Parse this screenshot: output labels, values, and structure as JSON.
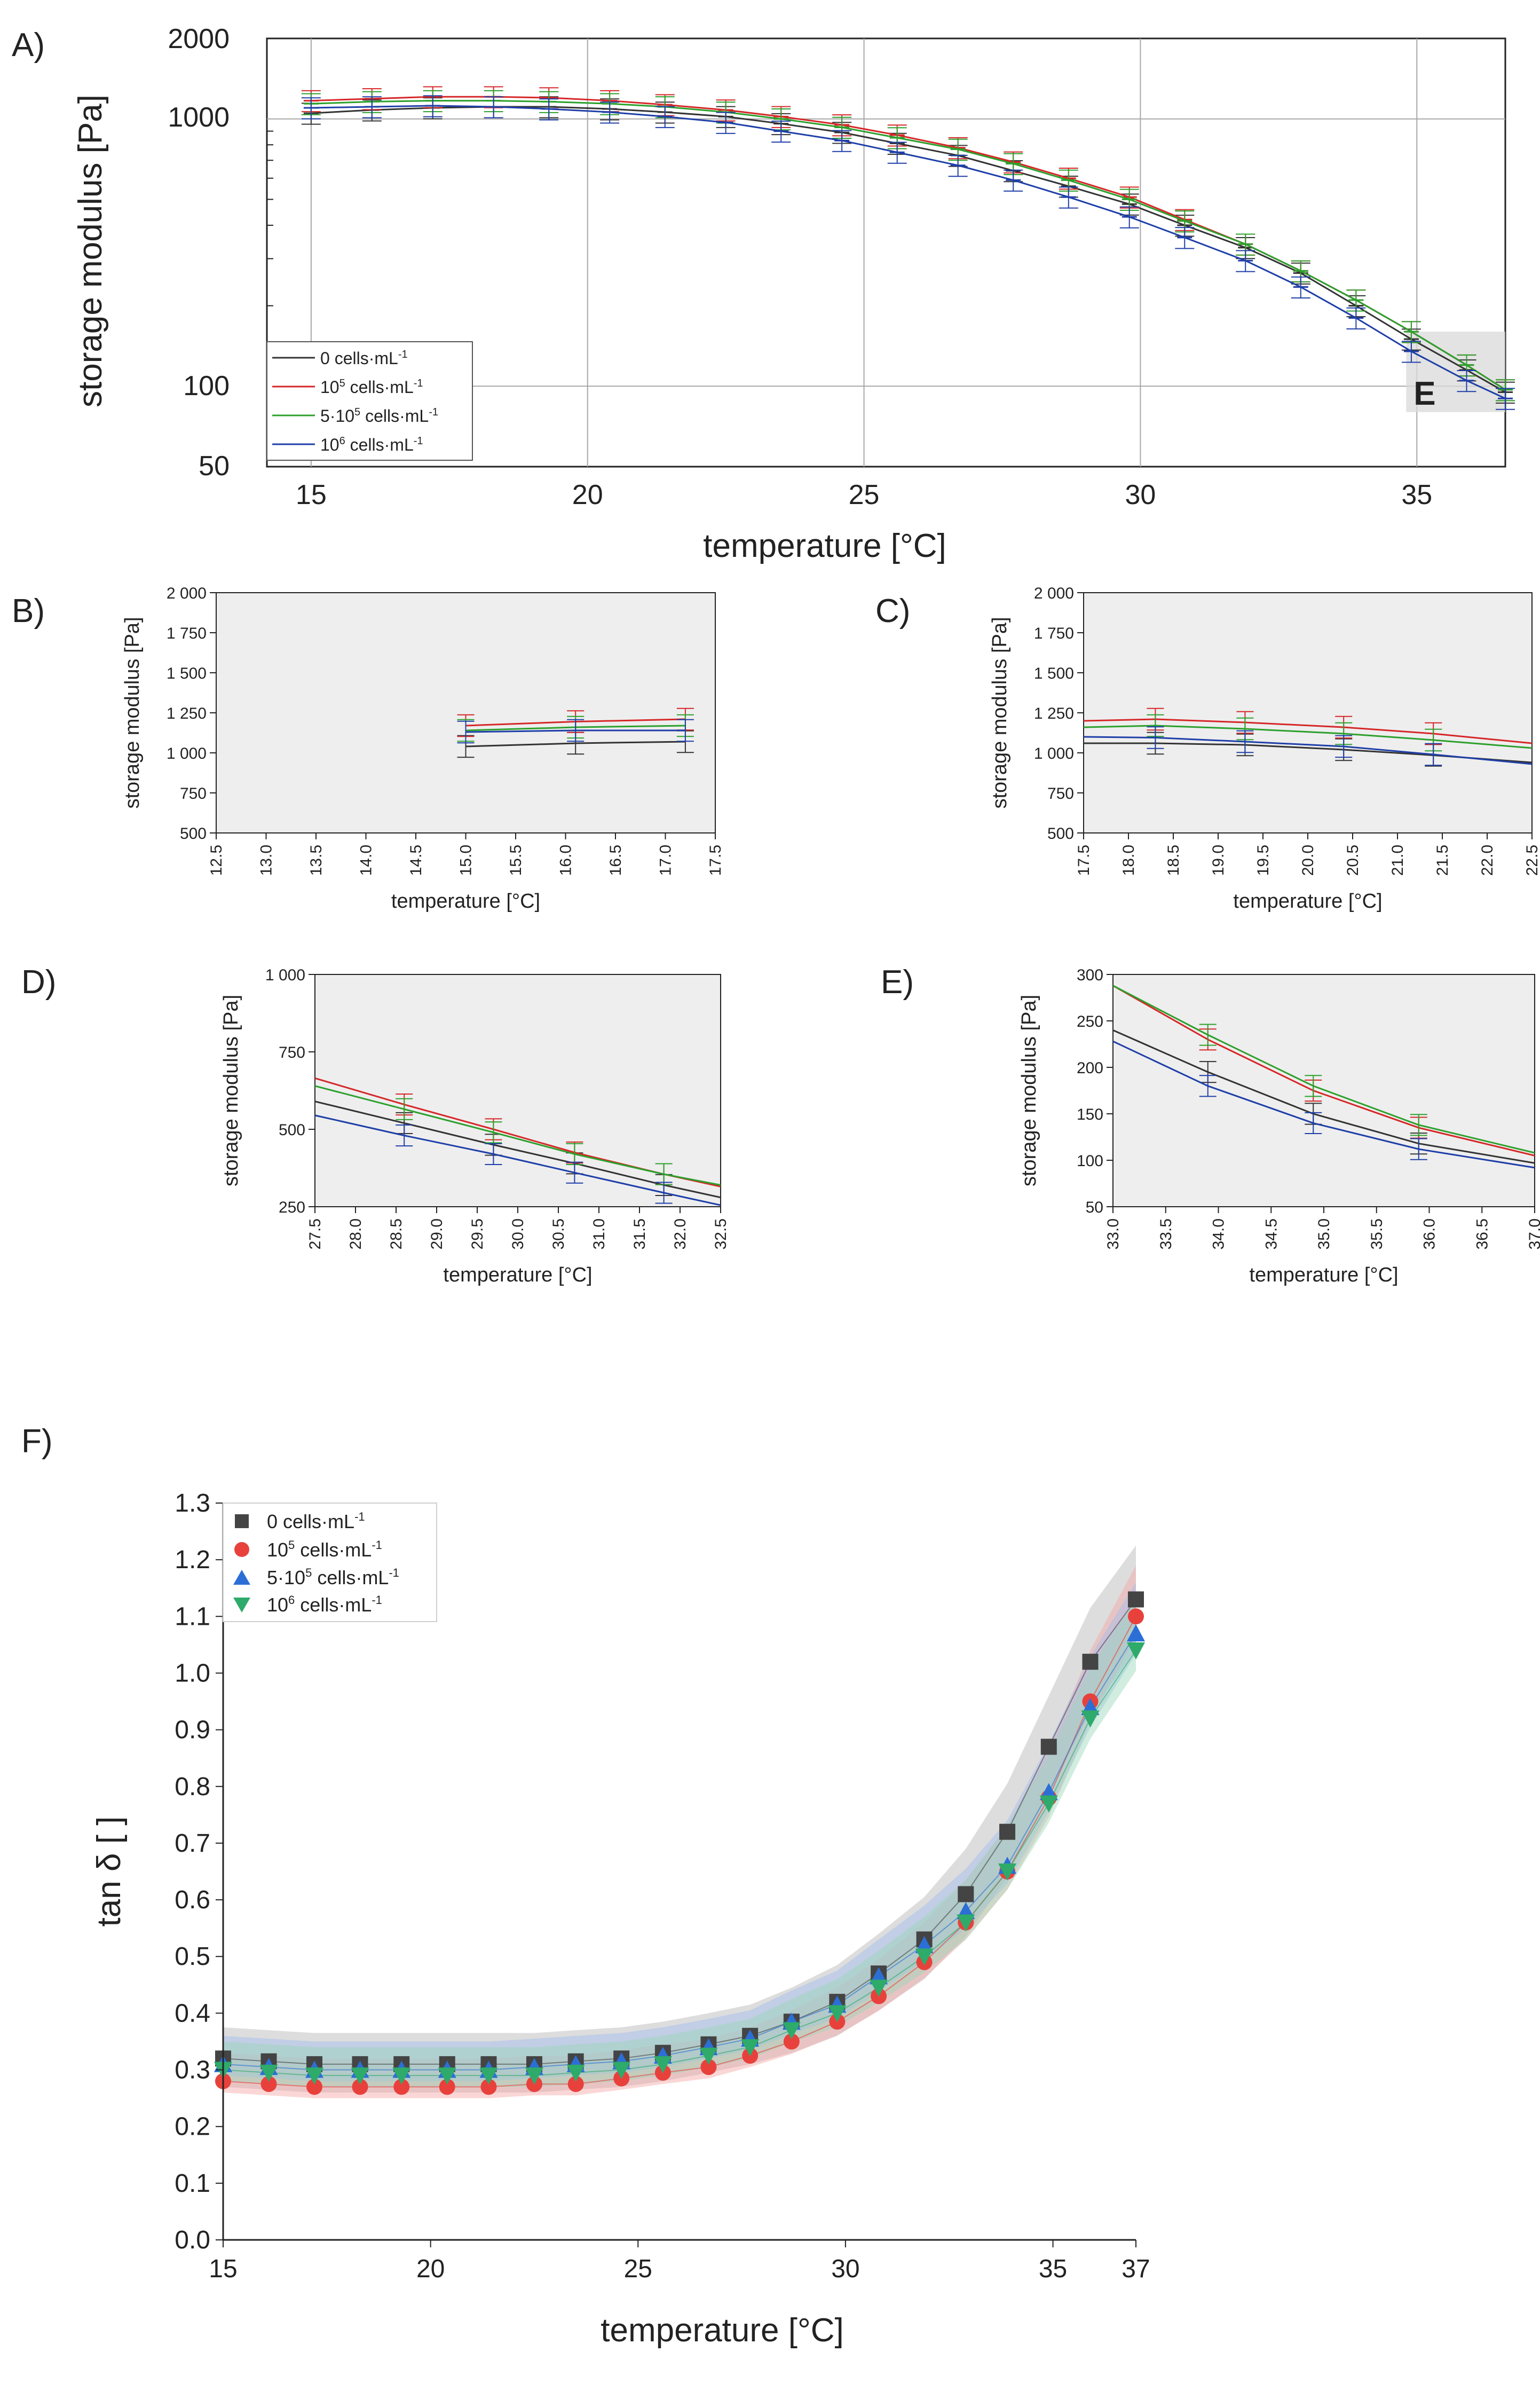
{
  "colors": {
    "c0": "#333333",
    "c1": "#d62728",
    "c2": "#2ca02c",
    "c3": "#1f3fa8",
    "f0": "#444444",
    "f1": "#e8413c",
    "f2": "#2b6fd6",
    "f3": "#2eaa6a",
    "grid": "#a8a8a8",
    "panel_bg": "#eeeeee",
    "zoom_bg": "#d9d9d9"
  },
  "series": [
    {
      "id": "s0",
      "prefix": "0",
      "sup": "",
      "mid": "",
      "suffix": " cells·mL",
      "exp": "-1"
    },
    {
      "id": "s1",
      "prefix": "10",
      "sup": "5",
      "mid": "",
      "suffix": " cells·mL",
      "exp": "-1"
    },
    {
      "id": "s2",
      "prefix": "5·10",
      "sup": "5",
      "mid": "",
      "suffix": " cells·mL",
      "exp": "-1"
    },
    {
      "id": "s3",
      "prefix": "10",
      "sup": "6",
      "mid": "",
      "suffix": " cells·mL",
      "exp": "-1"
    }
  ],
  "chart_data": [
    {
      "panel": "A)",
      "type": "line",
      "yscale": "log",
      "xlabel": "temperature [°C]",
      "ylabel": "storage modulus [Pa]",
      "xlim": [
        14.2,
        36.6
      ],
      "ylim": [
        50,
        2000
      ],
      "xticks": [
        15,
        20,
        25,
        30,
        35
      ],
      "yticks": [
        50,
        100,
        1000,
        2000
      ],
      "inset_label": "E",
      "inset_x": [
        35,
        36.6
      ],
      "inset_y": [
        80,
        160
      ],
      "x": [
        15,
        16.1,
        17.2,
        18.3,
        19.3,
        20.4,
        21.4,
        22.5,
        23.5,
        24.6,
        25.6,
        26.7,
        27.7,
        28.7,
        29.8,
        30.8,
        31.9,
        32.9,
        33.9,
        34.9,
        35.9,
        36.6
      ],
      "series": [
        {
          "name": "0 cells·mL-1",
          "values": [
            1050,
            1080,
            1100,
            1110,
            1110,
            1090,
            1060,
            1020,
            960,
            890,
            810,
            730,
            640,
            560,
            480,
            400,
            330,
            265,
            200,
            150,
            115,
            95
          ]
        },
        {
          "name": "10^5 cells·mL-1",
          "values": [
            1170,
            1190,
            1210,
            1210,
            1200,
            1170,
            1130,
            1080,
            1020,
            950,
            870,
            780,
            690,
            600,
            510,
            420,
            340,
            270,
            210,
            160,
            120,
            97
          ]
        },
        {
          "name": "5·10^5 cells·mL-1",
          "values": [
            1140,
            1160,
            1170,
            1170,
            1160,
            1140,
            1110,
            1060,
            1000,
            930,
            850,
            770,
            680,
            590,
            500,
            415,
            340,
            270,
            210,
            160,
            120,
            97
          ]
        },
        {
          "name": "10^6 cells·mL-1",
          "values": [
            1100,
            1110,
            1120,
            1110,
            1090,
            1060,
            1020,
            970,
            900,
            830,
            750,
            670,
            590,
            510,
            430,
            360,
            295,
            235,
            180,
            135,
            105,
            90
          ]
        }
      ]
    },
    {
      "panel": "B)",
      "type": "line",
      "xlabel": "temperature [°C]",
      "ylabel": "storage modulus [Pa]",
      "xlim": [
        12.5,
        17.5
      ],
      "ylim": [
        500,
        2000
      ],
      "xticks": [
        "12.5",
        "13.0",
        "13.5",
        "14.0",
        "14.5",
        "15.0",
        "15.5",
        "16.0",
        "16.5",
        "17.0",
        "17.5"
      ],
      "yticks": [
        "500",
        "750",
        "1 000",
        "1 250",
        "1 500",
        "1 750",
        "2 000"
      ],
      "x": [
        15.0,
        16.1,
        17.2
      ],
      "series": [
        {
          "name": "0 cells·mL-1",
          "values": [
            1040,
            1060,
            1070
          ]
        },
        {
          "name": "10^5 cells·mL-1",
          "values": [
            1170,
            1195,
            1210
          ]
        },
        {
          "name": "5·10^5 cells·mL-1",
          "values": [
            1140,
            1160,
            1170
          ]
        },
        {
          "name": "10^6 cells·mL-1",
          "values": [
            1130,
            1140,
            1140
          ]
        }
      ]
    },
    {
      "panel": "C)",
      "type": "line",
      "xlabel": "temperature [°C]",
      "ylabel": "storage modulus [Pa]",
      "xlim": [
        17.5,
        22.5
      ],
      "ylim": [
        500,
        2000
      ],
      "xticks": [
        "17.5",
        "18.0",
        "18.5",
        "19.0",
        "19.5",
        "20.0",
        "20.5",
        "21.0",
        "21.5",
        "22.0",
        "22.5"
      ],
      "yticks": [
        "500",
        "750",
        "1 000",
        "1 250",
        "1 500",
        "1 750",
        "2 000"
      ],
      "x": [
        17.5,
        18.3,
        19.3,
        20.4,
        21.4,
        22.5
      ],
      "series": [
        {
          "name": "0 cells·mL-1",
          "values": [
            1060,
            1060,
            1050,
            1020,
            985,
            940
          ]
        },
        {
          "name": "10^5 cells·mL-1",
          "values": [
            1200,
            1210,
            1190,
            1160,
            1120,
            1060
          ]
        },
        {
          "name": "5·10^5 cells·mL-1",
          "values": [
            1160,
            1170,
            1150,
            1120,
            1080,
            1030
          ]
        },
        {
          "name": "10^6 cells·mL-1",
          "values": [
            1100,
            1095,
            1070,
            1040,
            990,
            930
          ]
        }
      ]
    },
    {
      "panel": "D)",
      "type": "line",
      "xlabel": "temperature [°C]",
      "ylabel": "storage modulus [Pa]",
      "xlim": [
        27.5,
        32.5
      ],
      "ylim": [
        250,
        1000
      ],
      "xticks": [
        "27.5",
        "28.0",
        "28.5",
        "29.0",
        "29.5",
        "30.0",
        "30.5",
        "31.0",
        "31.5",
        "32.0",
        "32.5"
      ],
      "yticks": [
        "250",
        "500",
        "750",
        "1 000"
      ],
      "x": [
        27.5,
        28.6,
        29.7,
        30.7,
        31.8,
        32.5
      ],
      "series": [
        {
          "name": "0 cells·mL-1",
          "values": [
            590,
            520,
            450,
            390,
            320,
            280
          ]
        },
        {
          "name": "10^5 cells·mL-1",
          "values": [
            665,
            580,
            500,
            425,
            355,
            315
          ]
        },
        {
          "name": "5·10^5 cells·mL-1",
          "values": [
            640,
            565,
            490,
            420,
            355,
            320
          ]
        },
        {
          "name": "10^6 cells·mL-1",
          "values": [
            545,
            480,
            420,
            360,
            295,
            255
          ]
        }
      ]
    },
    {
      "panel": "E)",
      "type": "line",
      "xlabel": "temperature [°C]",
      "ylabel": "storage modulus [Pa]",
      "xlim": [
        33,
        37
      ],
      "ylim": [
        50,
        300
      ],
      "xticks": [
        "33.0",
        "33.5",
        "34.0",
        "34.5",
        "35.0",
        "35.5",
        "36.0",
        "36.5",
        "37.0"
      ],
      "yticks": [
        "50",
        "100",
        "150",
        "200",
        "250",
        "300"
      ],
      "x": [
        33.0,
        33.9,
        34.9,
        35.9,
        37.0
      ],
      "series": [
        {
          "name": "0 cells·mL-1",
          "values": [
            240,
            195,
            150,
            118,
            97
          ]
        },
        {
          "name": "10^5 cells·mL-1",
          "values": [
            288,
            230,
            175,
            135,
            105
          ]
        },
        {
          "name": "5·10^5 cells·mL-1",
          "values": [
            288,
            235,
            180,
            138,
            108
          ]
        },
        {
          "name": "10^6 cells·mL-1",
          "values": [
            228,
            180,
            140,
            112,
            92
          ]
        }
      ]
    },
    {
      "panel": "F)",
      "type": "scatter",
      "xlabel": "temperature [°C]",
      "ylabel": "tan δ [ ]",
      "xlim": [
        15,
        37
      ],
      "ylim": [
        0.0,
        1.3
      ],
      "xticks": [
        15,
        20,
        25,
        30,
        35,
        37
      ],
      "yticks": [
        "0.0",
        "0.1",
        "0.2",
        "0.3",
        "0.4",
        "0.5",
        "0.6",
        "0.7",
        "0.8",
        "0.9",
        "1.0",
        "1.1",
        "1.2",
        "1.3"
      ],
      "x": [
        15,
        16.1,
        17.2,
        18.3,
        19.3,
        20.4,
        21.4,
        22.5,
        23.5,
        24.6,
        25.6,
        26.7,
        27.7,
        28.7,
        29.8,
        30.8,
        31.9,
        32.9,
        33.9,
        34.9,
        35.9,
        37
      ],
      "series": [
        {
          "name": "0 cells·mL-1",
          "marker": "square",
          "values": [
            0.32,
            0.315,
            0.31,
            0.31,
            0.31,
            0.31,
            0.31,
            0.31,
            0.315,
            0.32,
            0.33,
            0.345,
            0.36,
            0.385,
            0.42,
            0.47,
            0.53,
            0.61,
            0.72,
            0.87,
            1.02,
            1.13
          ]
        },
        {
          "name": "10^5 cells·mL-1",
          "marker": "circle",
          "values": [
            0.28,
            0.275,
            0.27,
            0.27,
            0.27,
            0.27,
            0.27,
            0.275,
            0.275,
            0.285,
            0.295,
            0.305,
            0.325,
            0.35,
            0.385,
            0.43,
            0.49,
            0.56,
            0.65,
            0.78,
            0.95,
            1.1
          ]
        },
        {
          "name": "5·10^5 cells·mL-1",
          "marker": "triangle-up",
          "values": [
            0.31,
            0.305,
            0.3,
            0.3,
            0.3,
            0.3,
            0.3,
            0.305,
            0.31,
            0.315,
            0.325,
            0.34,
            0.355,
            0.385,
            0.415,
            0.465,
            0.52,
            0.58,
            0.66,
            0.79,
            0.94,
            1.07
          ]
        },
        {
          "name": "10^6 cells·mL-1",
          "marker": "triangle-down",
          "values": [
            0.3,
            0.295,
            0.29,
            0.29,
            0.29,
            0.29,
            0.29,
            0.29,
            0.295,
            0.3,
            0.31,
            0.325,
            0.34,
            0.37,
            0.4,
            0.445,
            0.5,
            0.56,
            0.65,
            0.77,
            0.92,
            1.04
          ]
        }
      ],
      "band": [
        0.05,
        0.05,
        0.05,
        0.05,
        0.05,
        0.05,
        0.05,
        0.05,
        0.05,
        0.05,
        0.05,
        0.05,
        0.05,
        0.055,
        0.06,
        0.065,
        0.07,
        0.075,
        0.08,
        0.085,
        0.09,
        0.09
      ]
    }
  ]
}
